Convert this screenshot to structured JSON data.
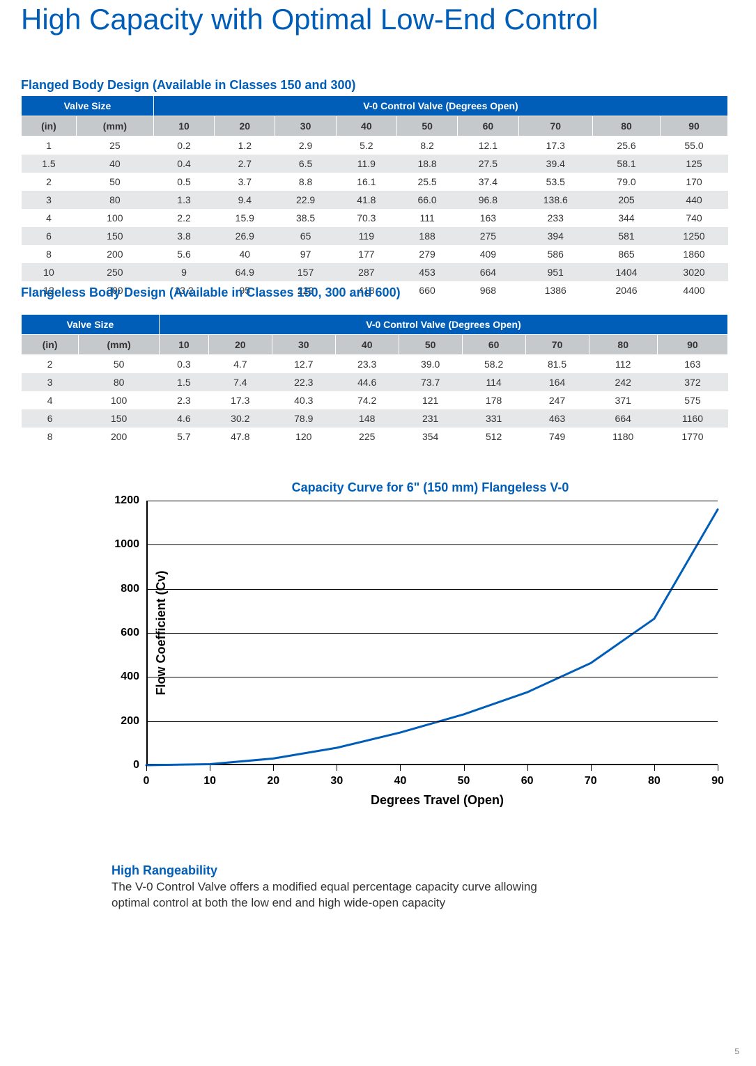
{
  "page": {
    "title": "High Capacity with Optimal Low-End Control",
    "number": "5"
  },
  "colors": {
    "brand_blue": "#005eb8",
    "header_grey": "#c5c9cc",
    "row_alt": "#e5e7e8",
    "text": "#333333",
    "curve": "#005eb8",
    "axis": "#000000",
    "background": "#ffffff"
  },
  "table1": {
    "title": "Flanged Body Design (Available in Classes 150 and 300)",
    "header_main_left": "Valve Size",
    "header_main_right": "V-0 Control Valve (Degrees Open)",
    "header_sub_in": "(in)",
    "header_sub_mm": "(mm)",
    "degrees": [
      "10",
      "20",
      "30",
      "40",
      "50",
      "60",
      "70",
      "80",
      "90"
    ],
    "rows": [
      {
        "in": "1",
        "mm": "25",
        "v": [
          "0.2",
          "1.2",
          "2.9",
          "5.2",
          "8.2",
          "12.1",
          "17.3",
          "25.6",
          "55.0"
        ]
      },
      {
        "in": "1.5",
        "mm": "40",
        "v": [
          "0.4",
          "2.7",
          "6.5",
          "11.9",
          "18.8",
          "27.5",
          "39.4",
          "58.1",
          "125"
        ]
      },
      {
        "in": "2",
        "mm": "50",
        "v": [
          "0.5",
          "3.7",
          "8.8",
          "16.1",
          "25.5",
          "37.4",
          "53.5",
          "79.0",
          "170"
        ]
      },
      {
        "in": "3",
        "mm": "80",
        "v": [
          "1.3",
          "9.4",
          "22.9",
          "41.8",
          "66.0",
          "96.8",
          "138.6",
          "205",
          "440"
        ]
      },
      {
        "in": "4",
        "mm": "100",
        "v": [
          "2.2",
          "15.9",
          "38.5",
          "70.3",
          "111",
          "163",
          "233",
          "344",
          "740"
        ]
      },
      {
        "in": "6",
        "mm": "150",
        "v": [
          "3.8",
          "26.9",
          "65",
          "119",
          "188",
          "275",
          "394",
          "581",
          "1250"
        ]
      },
      {
        "in": "8",
        "mm": "200",
        "v": [
          "5.6",
          "40",
          "97",
          "177",
          "279",
          "409",
          "586",
          "865",
          "1860"
        ]
      },
      {
        "in": "10",
        "mm": "250",
        "v": [
          "9",
          "64.9",
          "157",
          "287",
          "453",
          "664",
          "951",
          "1404",
          "3020"
        ]
      },
      {
        "in": "12",
        "mm": "300",
        "v": [
          "13.2",
          "95",
          "229",
          "418",
          "660",
          "968",
          "1386",
          "2046",
          "4400"
        ]
      }
    ]
  },
  "table2": {
    "title": "Flangeless Body Design (Available in Classes 150, 300 and 600)",
    "header_main_left": "Valve Size",
    "header_main_right": "V-0 Control Valve (Degrees Open)",
    "header_sub_in": "(in)",
    "header_sub_mm": "(mm)",
    "degrees": [
      "10",
      "20",
      "30",
      "40",
      "50",
      "60",
      "70",
      "80",
      "90"
    ],
    "rows": [
      {
        "in": "2",
        "mm": "50",
        "v": [
          "0.3",
          "4.7",
          "12.7",
          "23.3",
          "39.0",
          "58.2",
          "81.5",
          "112",
          "163"
        ]
      },
      {
        "in": "3",
        "mm": "80",
        "v": [
          "1.5",
          "7.4",
          "22.3",
          "44.6",
          "73.7",
          "114",
          "164",
          "242",
          "372"
        ]
      },
      {
        "in": "4",
        "mm": "100",
        "v": [
          "2.3",
          "17.3",
          "40.3",
          "74.2",
          "121",
          "178",
          "247",
          "371",
          "575"
        ]
      },
      {
        "in": "6",
        "mm": "150",
        "v": [
          "4.6",
          "30.2",
          "78.9",
          "148",
          "231",
          "331",
          "463",
          "664",
          "1160"
        ]
      },
      {
        "in": "8",
        "mm": "200",
        "v": [
          "5.7",
          "47.8",
          "120",
          "225",
          "354",
          "512",
          "749",
          "1180",
          "1770"
        ]
      }
    ]
  },
  "chart": {
    "type": "line",
    "title": "Capacity Curve for 6\" (150 mm) Flangeless V-0",
    "xlabel": "Degrees Travel (Open)",
    "ylabel": "Flow Coefficient (Cv)",
    "xlim": [
      0,
      90
    ],
    "ylim": [
      0,
      1200
    ],
    "xticks": [
      0,
      10,
      20,
      30,
      40,
      50,
      60,
      70,
      80,
      90
    ],
    "yticks": [
      0,
      200,
      400,
      600,
      800,
      1000,
      1200
    ],
    "line_color": "#005eb8",
    "line_width": 3,
    "grid_color": "#000000",
    "background_color": "#ffffff",
    "data": {
      "x": [
        0,
        10,
        20,
        30,
        40,
        50,
        60,
        70,
        80,
        90
      ],
      "y": [
        0,
        4.6,
        30.2,
        78.9,
        148,
        231,
        331,
        463,
        664,
        1160
      ]
    }
  },
  "footer": {
    "heading": "High Rangeability",
    "body": "The V-0 Control Valve offers a modified equal percentage capacity curve allowing optimal control at both the low end and high wide-open capacity"
  }
}
